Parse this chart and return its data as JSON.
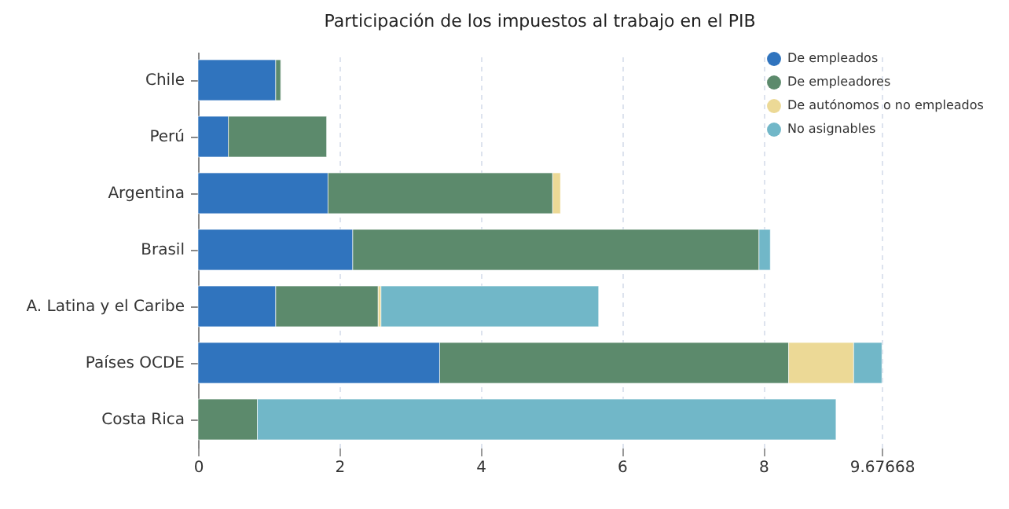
{
  "chart_data": {
    "type": "bar",
    "orientation": "horizontal",
    "stacked": true,
    "title": "Participación de los impuestos al trabajo en el PIB",
    "categories": [
      "Chile",
      "Perú",
      "Argentina",
      "Brasil",
      "A. Latina y el Caribe",
      "Países OCDE",
      "Costa Rica"
    ],
    "series": [
      {
        "name": "De empleados",
        "color": "#3074be",
        "values": [
          1.1,
          0.43,
          1.84,
          2.19,
          1.1,
          3.42,
          null
        ]
      },
      {
        "name": "De empleadores",
        "color": "#5c8a6c",
        "values": [
          0.07,
          1.39,
          3.18,
          5.75,
          1.45,
          4.94,
          0.84
        ]
      },
      {
        "name": "De autónomos o no empleados",
        "color": "#ecd996",
        "values": [
          null,
          null,
          0.11,
          null,
          0.04,
          0.92,
          null
        ]
      },
      {
        "name": "No asignables",
        "color": "#71b7c8",
        "values": [
          null,
          null,
          null,
          0.16,
          3.08,
          0.4,
          8.19
        ]
      }
    ],
    "xlim": [
      0,
      9.67668
    ],
    "xticks": [
      0,
      2,
      4,
      6,
      8,
      9.67668
    ],
    "grid": "x",
    "legend": "top right"
  }
}
